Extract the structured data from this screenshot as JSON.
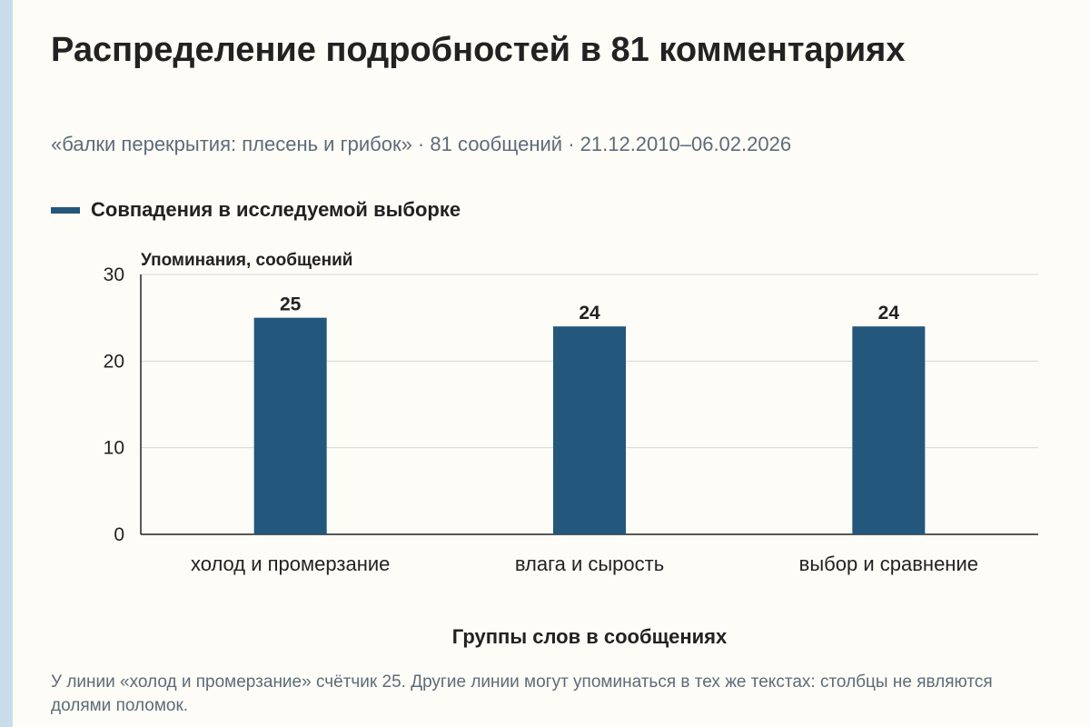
{
  "title": "Распределение подробностей в 81 комментариях",
  "subtitle": "«балки перекрытия: плесень и грибок» · 81 сообщений · 21.12.2010–06.02.2026",
  "footnote": "У линии «холод и промерзание» счётчик 25. Другие линии могут упоминаться в тех же текстах: столбцы не являются долями поломок.",
  "colors": {
    "bar": "#23577b",
    "grid": "#d8d8d4",
    "axis": "#222222",
    "accent_strip": "#c9dcea"
  },
  "chart_data": {
    "type": "bar",
    "ylabel": "Упоминания, сообщений",
    "xlabel": "Группы слов в сообщениях",
    "ylim": [
      0,
      30
    ],
    "yticks": [
      0,
      10,
      20,
      30
    ],
    "grid": true,
    "legend_position": "top-left",
    "categories": [
      "холод и промерзание",
      "влага и сырость",
      "выбор и сравнение"
    ],
    "series": [
      {
        "name": "Совпадения в исследуемой выборке",
        "values": [
          25,
          24,
          24
        ]
      }
    ]
  }
}
